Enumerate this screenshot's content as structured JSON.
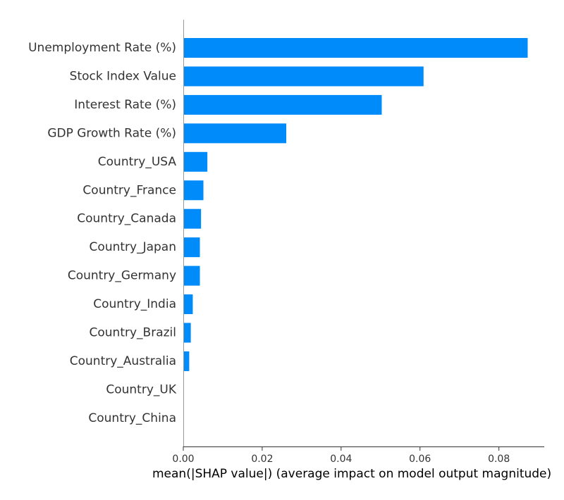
{
  "chart_data": {
    "type": "bar",
    "orientation": "horizontal",
    "categories": [
      "Unemployment Rate (%)",
      "Stock Index Value",
      "Interest Rate (%)",
      "GDP Growth Rate (%)",
      "Country_USA",
      "Country_France",
      "Country_Canada",
      "Country_Japan",
      "Country_Germany",
      "Country_India",
      "Country_Brazil",
      "Country_Australia",
      "Country_UK",
      "Country_China"
    ],
    "values": [
      0.0873,
      0.0609,
      0.0503,
      0.0261,
      0.0061,
      0.0051,
      0.0045,
      0.0042,
      0.0042,
      0.0024,
      0.0019,
      0.0015,
      0.0,
      0.0
    ],
    "xlabel": "mean(|SHAP value|) (average impact on model output magnitude)",
    "xticks": [
      "0.00",
      "0.02",
      "0.04",
      "0.06",
      "0.08"
    ],
    "xtick_values": [
      0.0,
      0.02,
      0.04,
      0.06,
      0.08
    ],
    "xlim": [
      0,
      0.0915
    ],
    "grid": false,
    "bar_color": "#008bfb",
    "axis_color": "#999999"
  }
}
